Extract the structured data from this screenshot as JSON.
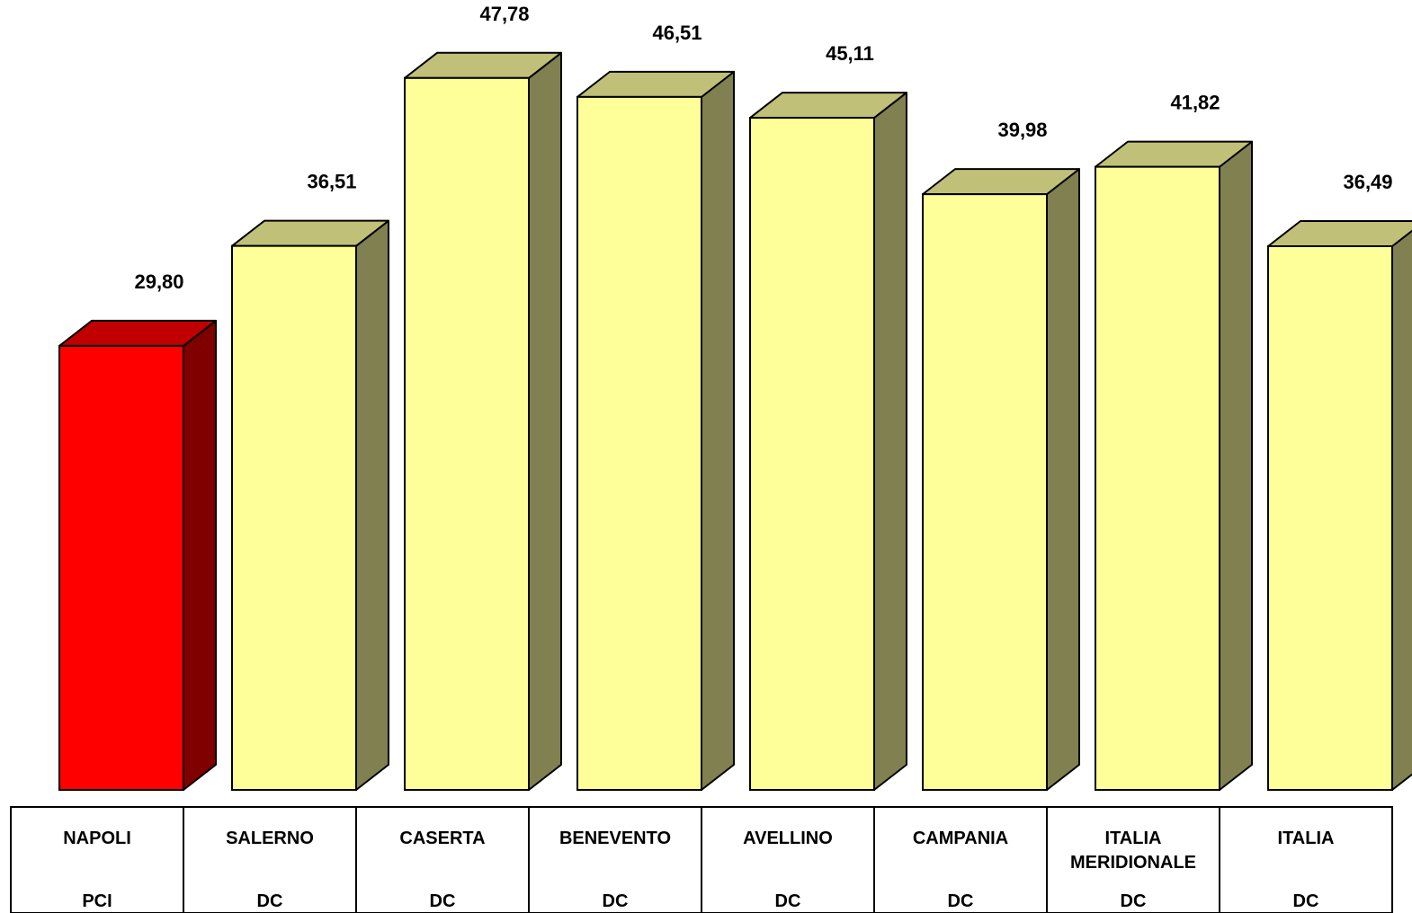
{
  "chart_data": {
    "type": "bar",
    "title": "",
    "xlabel": "",
    "ylabel": "",
    "ylim": [
      0,
      50
    ],
    "grid": false,
    "legend": "none",
    "categories": [
      [
        "NAPOLI"
      ],
      [
        "SALERNO"
      ],
      [
        "CASERTA"
      ],
      [
        "BENEVENTO"
      ],
      [
        "AVELLINO"
      ],
      [
        "CAMPANIA"
      ],
      [
        "ITALIA",
        "MERIDIONALE"
      ],
      [
        "ITALIA"
      ]
    ],
    "party_row": [
      "PCI",
      "DC",
      "DC",
      "DC",
      "DC",
      "DC",
      "DC",
      "DC"
    ],
    "values": [
      29.8,
      36.51,
      47.78,
      46.51,
      45.11,
      39.98,
      41.82,
      36.49
    ],
    "value_labels": [
      "29,80",
      "36,51",
      "47,78",
      "46,51",
      "45,11",
      "39,98",
      "41,82",
      "36,49"
    ],
    "colors": {
      "PCI": {
        "front": "#ff0000",
        "top": "#c00000",
        "side": "#800000"
      },
      "DC": {
        "front": "#ffff99",
        "top": "#c0c078",
        "side": "#808050"
      },
      "outline": "#000000",
      "text": "#000000"
    }
  }
}
